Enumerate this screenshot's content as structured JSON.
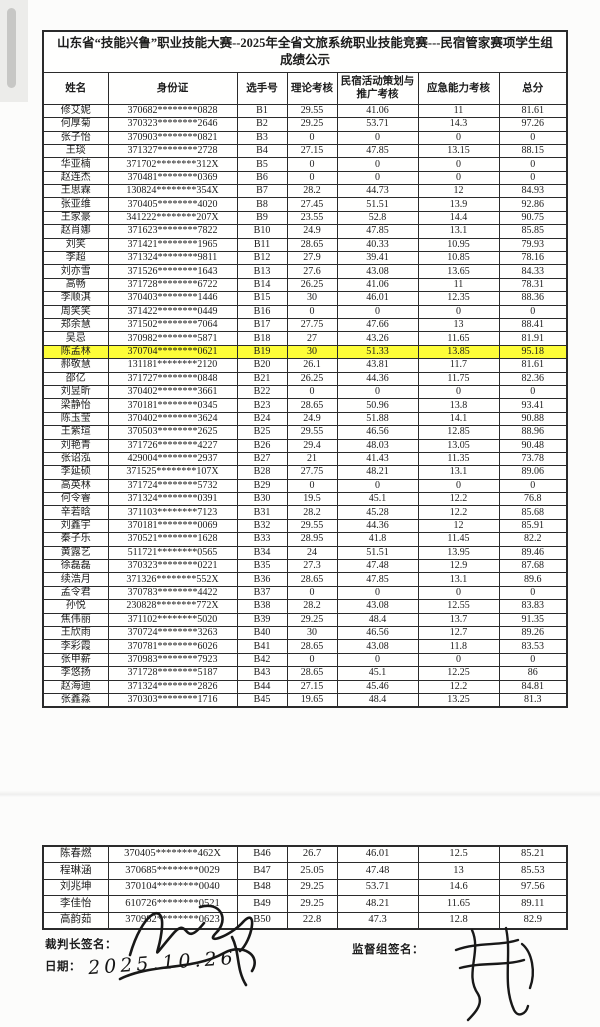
{
  "document": {
    "title": "山东省“技能兴鲁”职业技能大赛--2025年全省文旅系统职业技能竞赛---民宿管家赛项学生组成绩公示",
    "columns": [
      "姓名",
      "身份证",
      "选手号",
      "理论考核",
      "民宿活动策划与推广考核",
      "应急能力考核",
      "总分"
    ],
    "highlighted_contestant": "B19",
    "highlight_color": "#fdfd38",
    "rows": [
      [
        "修艾妮",
        "370682********0828",
        "B1",
        "29.55",
        "41.06",
        "11",
        "81.61"
      ],
      [
        "何厚菊",
        "370323********2646",
        "B2",
        "29.25",
        "53.71",
        "14.3",
        "97.26"
      ],
      [
        "张子怡",
        "370903********0821",
        "B3",
        "0",
        "0",
        "0",
        "0"
      ],
      [
        "王琰",
        "371327********2728",
        "B4",
        "27.15",
        "47.85",
        "13.15",
        "88.15"
      ],
      [
        "华亚楠",
        "371702********312X",
        "B5",
        "0",
        "0",
        "0",
        "0"
      ],
      [
        "赵连杰",
        "370481********0369",
        "B6",
        "0",
        "0",
        "0",
        "0"
      ],
      [
        "王思霖",
        "130824********354X",
        "B7",
        "28.2",
        "44.73",
        "12",
        "84.93"
      ],
      [
        "张亚维",
        "370405********4020",
        "B8",
        "27.45",
        "51.51",
        "13.9",
        "92.86"
      ],
      [
        "王家豪",
        "341222********207X",
        "B9",
        "23.55",
        "52.8",
        "14.4",
        "90.75"
      ],
      [
        "赵肖娜",
        "371623********7822",
        "B10",
        "24.9",
        "47.85",
        "13.1",
        "85.85"
      ],
      [
        "刘笑",
        "371421********1965",
        "B11",
        "28.65",
        "40.33",
        "10.95",
        "79.93"
      ],
      [
        "李超",
        "371324********9811",
        "B12",
        "27.9",
        "39.41",
        "10.85",
        "78.16"
      ],
      [
        "刘亦雪",
        "371526********1643",
        "B13",
        "27.6",
        "43.08",
        "13.65",
        "84.33"
      ],
      [
        "高畅",
        "371728********6722",
        "B14",
        "26.25",
        "41.06",
        "11",
        "78.31"
      ],
      [
        "李顺淇",
        "370403********1446",
        "B15",
        "30",
        "46.01",
        "12.35",
        "88.36"
      ],
      [
        "周笑笑",
        "371422********0449",
        "B16",
        "0",
        "0",
        "0",
        "0"
      ],
      [
        "郑余慧",
        "371502********7064",
        "B17",
        "27.75",
        "47.66",
        "13",
        "88.41"
      ],
      [
        "吴忌",
        "370982********5871",
        "B18",
        "27",
        "43.26",
        "11.65",
        "81.91"
      ],
      [
        "陈孟林",
        "370704********0621",
        "B19",
        "30",
        "51.33",
        "13.85",
        "95.18"
      ],
      [
        "郝敬慧",
        "131181********2120",
        "B20",
        "26.1",
        "43.81",
        "11.7",
        "81.61"
      ],
      [
        "邵亿",
        "371727********0848",
        "B21",
        "26.25",
        "44.36",
        "11.75",
        "82.36"
      ],
      [
        "刘昱昕",
        "370402********3661",
        "B22",
        "0",
        "0",
        "0",
        "0"
      ],
      [
        "梁静怡",
        "370181********0345",
        "B23",
        "28.65",
        "50.96",
        "13.8",
        "93.41"
      ],
      [
        "陈玉莹",
        "370402********3624",
        "B24",
        "24.9",
        "51.88",
        "14.1",
        "90.88"
      ],
      [
        "王紫瑄",
        "370503********2625",
        "B25",
        "29.55",
        "46.56",
        "12.85",
        "88.96"
      ],
      [
        "刘艳青",
        "371726********4227",
        "B26",
        "29.4",
        "48.03",
        "13.05",
        "90.48"
      ],
      [
        "张诏泓",
        "429004********2937",
        "B27",
        "21",
        "41.43",
        "11.35",
        "73.78"
      ],
      [
        "李延硕",
        "371525********107X",
        "B28",
        "27.75",
        "48.21",
        "13.1",
        "89.06"
      ],
      [
        "高英林",
        "371724********5732",
        "B29",
        "0",
        "0",
        "0",
        "0"
      ],
      [
        "何令睿",
        "371324********0391",
        "B30",
        "19.5",
        "45.1",
        "12.2",
        "76.8"
      ],
      [
        "辛若晗",
        "371103********7123",
        "B31",
        "28.2",
        "45.28",
        "12.2",
        "85.68"
      ],
      [
        "刘鑫宇",
        "370181********0069",
        "B32",
        "29.55",
        "44.36",
        "12",
        "85.91"
      ],
      [
        "秦子乐",
        "370521********1628",
        "B33",
        "28.95",
        "41.8",
        "11.45",
        "82.2"
      ],
      [
        "黄露艺",
        "511721********0565",
        "B34",
        "24",
        "51.51",
        "13.95",
        "89.46"
      ],
      [
        "徐磊磊",
        "370323********0221",
        "B35",
        "27.3",
        "47.48",
        "12.9",
        "87.68"
      ],
      [
        "续浩月",
        "371326********552X",
        "B36",
        "28.65",
        "47.85",
        "13.1",
        "89.6"
      ],
      [
        "孟令君",
        "370783********4422",
        "B37",
        "0",
        "0",
        "0",
        "0"
      ],
      [
        "孙悦",
        "230828********772X",
        "B38",
        "28.2",
        "43.08",
        "12.55",
        "83.83"
      ],
      [
        "焦伟丽",
        "371102********5020",
        "B39",
        "29.25",
        "48.4",
        "13.7",
        "91.35"
      ],
      [
        "王欣雨",
        "370724********3263",
        "B40",
        "30",
        "46.56",
        "12.7",
        "89.26"
      ],
      [
        "李彩霞",
        "370781********6026",
        "B41",
        "28.65",
        "43.08",
        "11.8",
        "83.53"
      ],
      [
        "张甲薪",
        "370983********7923",
        "B42",
        "0",
        "0",
        "0",
        "0"
      ],
      [
        "李悠扬",
        "371728********5187",
        "B43",
        "28.65",
        "45.1",
        "12.25",
        "86"
      ],
      [
        "赵海迪",
        "371324********2826",
        "B44",
        "27.15",
        "45.46",
        "12.2",
        "84.81"
      ],
      [
        "张鑫淼",
        "370303********1716",
        "B45",
        "19.65",
        "48.4",
        "13.25",
        "81.3"
      ]
    ],
    "rows2": [
      [
        "陈春燃",
        "370405********462X",
        "B46",
        "26.7",
        "46.01",
        "12.5",
        "85.21"
      ],
      [
        "程琳涵",
        "370685********0029",
        "B47",
        "25.05",
        "47.48",
        "13",
        "85.53"
      ],
      [
        "刘兆坤",
        "370104********0040",
        "B48",
        "29.25",
        "53.71",
        "14.6",
        "97.56"
      ],
      [
        "李佳怡",
        "610726********0521",
        "B49",
        "29.25",
        "48.21",
        "11.65",
        "89.11"
      ],
      [
        "高韵茹",
        "370982********0623",
        "B50",
        "22.8",
        "47.3",
        "12.8",
        "82.9"
      ]
    ],
    "footer": {
      "judge_sign_label": "裁判长签名：",
      "date_label": "日期：",
      "date_value": "2025.10.26",
      "supervisor_sign_label": "监督组签名："
    }
  }
}
